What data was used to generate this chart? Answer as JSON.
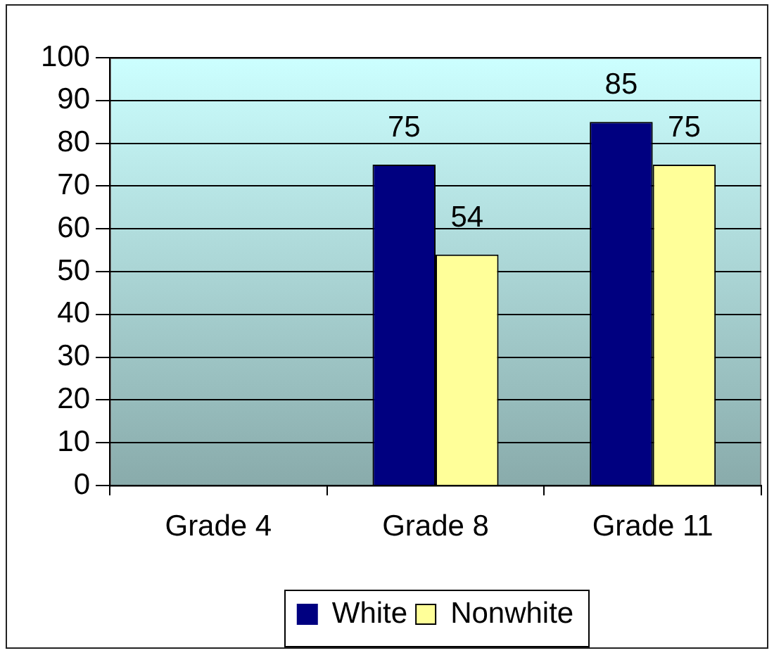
{
  "chart_data": {
    "type": "bar",
    "categories": [
      "Grade 4",
      "Grade 8",
      "Grade 11"
    ],
    "series": [
      {
        "name": "White",
        "color": "#000080",
        "values": [
          null,
          75,
          85
        ]
      },
      {
        "name": "Nonwhite",
        "color": "#ffff99",
        "values": [
          null,
          54,
          75
        ]
      }
    ],
    "ylim": [
      0,
      100
    ],
    "yticks": [
      0,
      10,
      20,
      30,
      40,
      50,
      60,
      70,
      80,
      90,
      100
    ],
    "grid": "y",
    "legend": "bottom",
    "data_labels": true
  }
}
